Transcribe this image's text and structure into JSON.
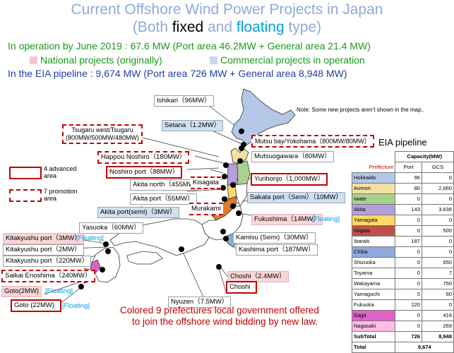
{
  "title": {
    "line1": "Current Offshore Wind Power Projects in Japan",
    "line2_a": "(Both ",
    "line2_b": "fixed",
    "line2_c": " and ",
    "line2_d": "floating",
    "line2_e": " type)"
  },
  "summary": {
    "operation": "In operation by June 2019 : 67.6 MW (Port area 46.2MW + General area 21.4 MW)",
    "national": "National projects (originally)",
    "commercial": "Commercial projects in operation",
    "eia": "In the EIA pipeline : 9,674 MW (Port area 726 MW + General area 8,948 MW)"
  },
  "colors": {
    "title": "#8eaadb",
    "operation": "#1a9a1a",
    "national": "#f5c6c8",
    "commercial": "#c5d9ee",
    "eia_text": "#1f3fa0",
    "red": "#c00000",
    "floating": "#00a0e0"
  },
  "note": "Note: Some new projects aren’t  shown in the map..",
  "legend": {
    "advanced_line1": "4  advanced",
    "advanced_line2": "area",
    "promotion_line1": "7  promotion",
    "promotion_line2": "area"
  },
  "projects": {
    "ishikari": "Ishikari（96MW）",
    "setana": "Setana（1.2MW）",
    "tsugaru_1": "Tsugaru west/Tsugaru",
    "tsugaru_2": "(800MW/500MW/480MW)",
    "mutsu": "Mutsu bay/Yokohama（800MW/80MW）",
    "mutsuogawara": "Mutsuogawara（80MW）",
    "happou": "Happou Noshiro（180MW）",
    "noshiro": "Noshiro port（88MW）",
    "akita_north": "Akita north（455MW）",
    "kisagata": "Kisagata",
    "yurihonjo": "Yurihonjo（1,000MW）",
    "akita_port": "Akita port（55MW）",
    "sakata": "Sakata port（Semi）（10MW）",
    "akita_semi": "Akita port(semi)（3MW）",
    "murakami": "Murakami",
    "fukushima": "Fukushima（14MW）",
    "fukushima_f": "[Floating]",
    "yasuoka": "Yasuoka（60MW）",
    "kitakyushu_3": "Kitakyushu port（3MW）",
    "kitakyushu_3_f": "[Floating]",
    "kitakyushu_2": "Kitakyushu port（2MW）",
    "kitakyushu_220": "Kitakyushu port（220MW）",
    "kamisu": "Kamisu (Semi)（30MW）",
    "kashima": "Kashima port（187MW）",
    "saikai": "Saikai Enoshima（240MW）",
    "choshi_24": "Choshi（2.4MW）",
    "choshi": "Choshi",
    "goto2": "Goto(2MW)",
    "goto2_f": "[Floating]",
    "nyuzen": "Nyuzen（7.5MW）",
    "goto22": "Goto (22MW)",
    "goto22_f": "[Floating]"
  },
  "bottom_note_1": "Colored 9 prefectures local government offered",
  "bottom_note_2": "to join the offshore wind bidding by new law.",
  "eia_table": {
    "title": "EIA pipeline",
    "capacity_header": "Capacity(MW)",
    "prefecture_header": "Prefecture",
    "col_port": "Port",
    "col_gcs": "GCS",
    "rows": [
      {
        "name": "Hokkaido",
        "port": "96",
        "gcs": "0",
        "color": "#b4c7e7"
      },
      {
        "name": "Aomori",
        "port": "80",
        "gcs": "2,660",
        "color": "#f4e1a1"
      },
      {
        "name": "Iwate",
        "port": "0",
        "gcs": "0",
        "color": "#a9d18e"
      },
      {
        "name": "Akita",
        "port": "143",
        "gcs": "3,636",
        "color": "#b49fdc"
      },
      {
        "name": "Yamagata",
        "port": "0",
        "gcs": "0",
        "color": "#ffd966"
      },
      {
        "name": "Niigata",
        "port": "0",
        "gcs": "500",
        "color": "#c0504d"
      },
      {
        "name": "Ibaraki",
        "port": "187",
        "gcs": "0",
        "color": "#ffffff"
      },
      {
        "name": "Chiba",
        "port": "0",
        "gcs": "0",
        "color": "#8faadc"
      },
      {
        "name": "Shizuoka",
        "port": "0",
        "gcs": "650",
        "color": "#ffffff"
      },
      {
        "name": "Toyama",
        "port": "0",
        "gcs": "7",
        "color": "#ffffff"
      },
      {
        "name": "Wakayama",
        "port": "0",
        "gcs": "750",
        "color": "#ffffff"
      },
      {
        "name": "Yamaguchi",
        "port": "0",
        "gcs": "60",
        "color": "#ffffff"
      },
      {
        "name": "Fukuoka",
        "port": "220",
        "gcs": "0",
        "color": "#ffffff"
      },
      {
        "name": "Saga",
        "port": "0",
        "gcs": "416",
        "color": "#e062c8"
      },
      {
        "name": "Nagasaki",
        "port": "0",
        "gcs": "269",
        "color": "#ffbde5"
      }
    ],
    "subtotal_label": "SubTotal",
    "subtotal_port": "726",
    "subtotal_gcs": "8,948",
    "total_label": "Total",
    "total_value": "9,674"
  }
}
